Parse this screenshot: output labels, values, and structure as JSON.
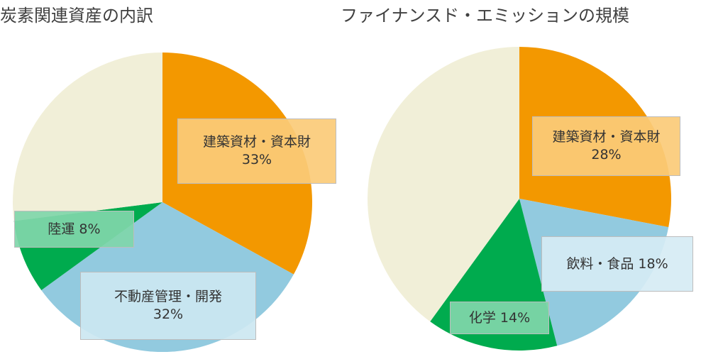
{
  "chart_data": [
    {
      "type": "pie",
      "title": "炭素関連資産の内訳",
      "slices": [
        {
          "label": "建築資材・資本財",
          "value": 33,
          "value_label": "33%",
          "color": "#f39800",
          "label_bg": "rgba(251,203,120,0.92)",
          "label_layout": "two-line"
        },
        {
          "label": "不動産管理・開発",
          "value": 32,
          "value_label": "32%",
          "color": "#92cadf",
          "label_bg": "rgba(204,231,241,0.92)",
          "label_layout": "two-line"
        },
        {
          "label": "陸運",
          "value": 8,
          "value_label": "8%",
          "color": "#00ab4e",
          "label_bg": "rgba(128,214,170,0.92)",
          "label_layout": "inline"
        },
        {
          "label": "",
          "value": 27,
          "value_label": "",
          "color": "#f1efd8",
          "label_bg": "",
          "label_layout": "none"
        }
      ]
    },
    {
      "type": "pie",
      "title": "ファイナンスド・エミッションの規模",
      "slices": [
        {
          "label": "建築資材・資本財",
          "value": 28,
          "value_label": "28%",
          "color": "#f39800",
          "label_bg": "rgba(251,203,120,0.92)",
          "label_layout": "two-line"
        },
        {
          "label": "飲料・食品",
          "value": 18,
          "value_label": "18%",
          "color": "#92cadf",
          "label_bg": "rgba(214,236,244,0.92)",
          "label_layout": "inline"
        },
        {
          "label": "化学",
          "value": 14,
          "value_label": "14%",
          "color": "#00ab4e",
          "label_bg": "rgba(128,214,170,0.92)",
          "label_layout": "inline"
        },
        {
          "label": "",
          "value": 40,
          "value_label": "",
          "color": "#f1efd8",
          "label_bg": "",
          "label_layout": "none"
        }
      ]
    }
  ]
}
